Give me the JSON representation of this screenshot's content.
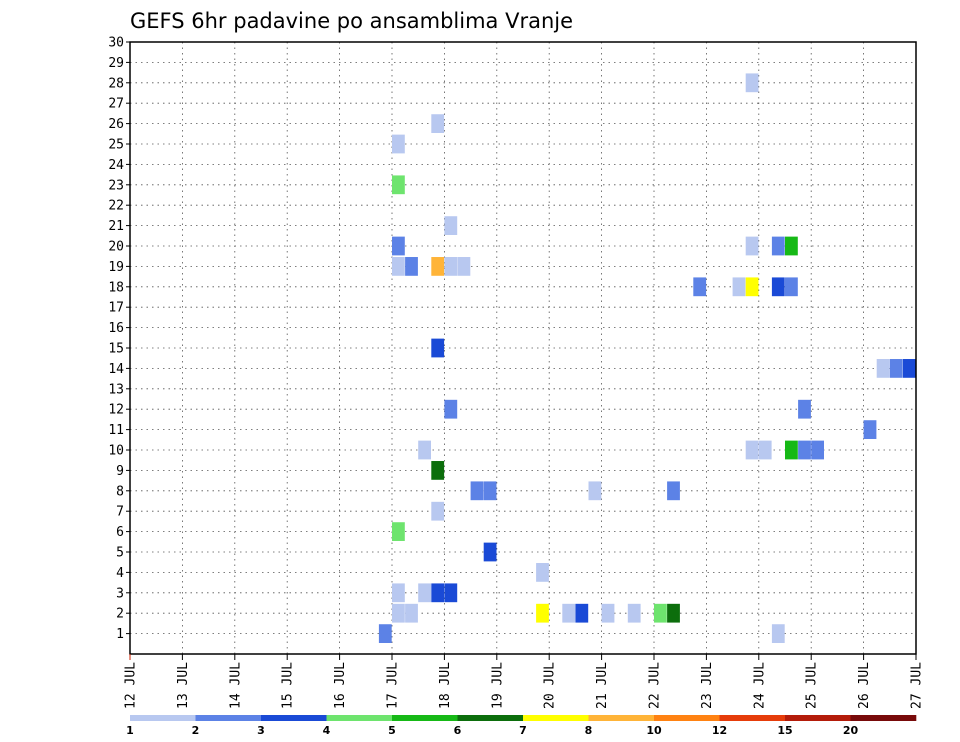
{
  "chart_data": {
    "type": "heatmap",
    "title": "GEFS 6hr padavine po ansamblima Vranje",
    "xlabel": "",
    "ylabel": "",
    "x_ticks": [
      "12 JUL",
      "13 JUL",
      "14 JUL",
      "15 JUL",
      "16 JUL",
      "17 JUL",
      "18 JUL",
      "19 JUL",
      "20 JUL",
      "21 JUL",
      "22 JUL",
      "23 JUL",
      "24 JUL",
      "25 JUL",
      "26 JUL",
      "27 JUL"
    ],
    "x_range": [
      0,
      60
    ],
    "y_range": [
      0,
      30
    ],
    "y_ticks": [
      1,
      2,
      3,
      4,
      5,
      6,
      7,
      8,
      9,
      10,
      11,
      12,
      13,
      14,
      15,
      16,
      17,
      18,
      19,
      20,
      21,
      22,
      23,
      24,
      25,
      26,
      27,
      28,
      29,
      30
    ],
    "grid": true,
    "colorbar": {
      "thresholds": [
        "1",
        "2",
        "3",
        "4",
        "5",
        "6",
        "7",
        "8",
        "10",
        "12",
        "15",
        "20"
      ],
      "colors": [
        "#b8c8f0",
        "#5c82e6",
        "#1a4ad6",
        "#6ee46e",
        "#16b916",
        "#0c6e0c",
        "#ffff00",
        "#ffb438",
        "#ff8212",
        "#e63c0a",
        "#b41c0a",
        "#780a0a"
      ]
    },
    "cells": [
      {
        "t": 19,
        "m": 1,
        "c": 1
      },
      {
        "t": 49,
        "m": 1,
        "c": 0
      },
      {
        "t": 20,
        "m": 2,
        "c": 0
      },
      {
        "t": 21,
        "m": 2,
        "c": 0
      },
      {
        "t": 31,
        "m": 2,
        "c": 6
      },
      {
        "t": 33,
        "m": 2,
        "c": 0
      },
      {
        "t": 34,
        "m": 2,
        "c": 2
      },
      {
        "t": 36,
        "m": 2,
        "c": 0
      },
      {
        "t": 38,
        "m": 2,
        "c": 0
      },
      {
        "t": 40,
        "m": 2,
        "c": 3
      },
      {
        "t": 41,
        "m": 2,
        "c": 5
      },
      {
        "t": 20,
        "m": 3,
        "c": 0
      },
      {
        "t": 22,
        "m": 3,
        "c": 0
      },
      {
        "t": 23,
        "m": 3,
        "c": 2
      },
      {
        "t": 24,
        "m": 3,
        "c": 2
      },
      {
        "t": 31,
        "m": 4,
        "c": 0
      },
      {
        "t": 27,
        "m": 5,
        "c": 2
      },
      {
        "t": 20,
        "m": 6,
        "c": 3
      },
      {
        "t": 23,
        "m": 7,
        "c": 0
      },
      {
        "t": 26,
        "m": 8,
        "c": 1
      },
      {
        "t": 27,
        "m": 8,
        "c": 1
      },
      {
        "t": 35,
        "m": 8,
        "c": 0
      },
      {
        "t": 41,
        "m": 8,
        "c": 1
      },
      {
        "t": 23,
        "m": 9,
        "c": 5
      },
      {
        "t": 22,
        "m": 10,
        "c": 0
      },
      {
        "t": 47,
        "m": 10,
        "c": 0
      },
      {
        "t": 48,
        "m": 10,
        "c": 0
      },
      {
        "t": 50,
        "m": 10,
        "c": 4
      },
      {
        "t": 51,
        "m": 10,
        "c": 1
      },
      {
        "t": 52,
        "m": 10,
        "c": 1
      },
      {
        "t": 56,
        "m": 11,
        "c": 1
      },
      {
        "t": 24,
        "m": 12,
        "c": 1
      },
      {
        "t": 51,
        "m": 12,
        "c": 1
      },
      {
        "t": 57,
        "m": 14,
        "c": 0
      },
      {
        "t": 58,
        "m": 14,
        "c": 1
      },
      {
        "t": 59,
        "m": 14,
        "c": 2
      },
      {
        "t": 23,
        "m": 15,
        "c": 2
      },
      {
        "t": 43,
        "m": 18,
        "c": 1
      },
      {
        "t": 46,
        "m": 18,
        "c": 0
      },
      {
        "t": 47,
        "m": 18,
        "c": 6
      },
      {
        "t": 49,
        "m": 18,
        "c": 2
      },
      {
        "t": 50,
        "m": 18,
        "c": 1
      },
      {
        "t": 20,
        "m": 19,
        "c": 0
      },
      {
        "t": 21,
        "m": 19,
        "c": 1
      },
      {
        "t": 23,
        "m": 19,
        "c": 7
      },
      {
        "t": 24,
        "m": 19,
        "c": 0
      },
      {
        "t": 25,
        "m": 19,
        "c": 0
      },
      {
        "t": 20,
        "m": 20,
        "c": 1
      },
      {
        "t": 47,
        "m": 20,
        "c": 0
      },
      {
        "t": 49,
        "m": 20,
        "c": 1
      },
      {
        "t": 50,
        "m": 20,
        "c": 4
      },
      {
        "t": 24,
        "m": 21,
        "c": 0
      },
      {
        "t": 20,
        "m": 23,
        "c": 3
      },
      {
        "t": 20,
        "m": 25,
        "c": 0
      },
      {
        "t": 23,
        "m": 26,
        "c": 0
      },
      {
        "t": 47,
        "m": 28,
        "c": 0
      }
    ]
  }
}
